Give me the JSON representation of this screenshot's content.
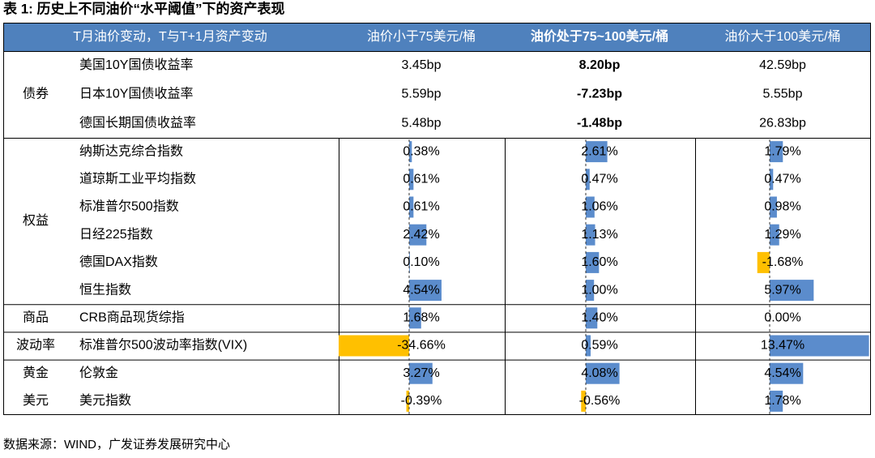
{
  "title": "表 1: 历史上不同油价“水平阈值”下的资产表现",
  "table": {
    "header": [
      "T月油价变动，T与T+1月资产变动",
      "油价小于75美元/桶",
      "油价处于75~100美元/桶",
      "油价大于100美元/桶"
    ],
    "groups": [
      {
        "label": "债券",
        "rows": [
          {
            "name": "美国10Y国债收益率",
            "cells": [
              "3.45bp",
              "8.20bp",
              "42.59bp"
            ]
          },
          {
            "name": "日本10Y国债收益率",
            "cells": [
              "5.59bp",
              "-7.23bp",
              "5.55bp"
            ]
          },
          {
            "name": "德国长期国债收益率",
            "cells": [
              "5.48bp",
              "-1.48bp",
              "26.83bp"
            ]
          }
        ]
      },
      {
        "label": "权益",
        "rows": [
          {
            "name": "纳斯达克综合指数",
            "cells": [
              {
                "value": 0.38,
                "label": "0.38%"
              },
              {
                "value": 2.61,
                "label": "2.61%"
              },
              {
                "value": 1.79,
                "label": "1.79%"
              }
            ]
          },
          {
            "name": "道琼斯工业平均指数",
            "cells": [
              {
                "value": 0.61,
                "label": "0.61%"
              },
              {
                "value": 0.47,
                "label": "0.47%"
              },
              {
                "value": 0.47,
                "label": "0.47%"
              }
            ]
          },
          {
            "name": "标准普尔500指数",
            "cells": [
              {
                "value": 0.61,
                "label": "0.61%"
              },
              {
                "value": 1.06,
                "label": "1.06%"
              },
              {
                "value": 0.98,
                "label": "0.98%"
              }
            ]
          },
          {
            "name": "日经225指数",
            "cells": [
              {
                "value": 2.42,
                "label": "2.42%"
              },
              {
                "value": 1.13,
                "label": "1.13%"
              },
              {
                "value": 1.29,
                "label": "1.29%"
              }
            ]
          },
          {
            "name": "德国DAX指数",
            "cells": [
              {
                "value": 0.1,
                "label": "0.10%"
              },
              {
                "value": 1.6,
                "label": "1.60%"
              },
              {
                "value": -1.68,
                "label": "-1.68%"
              }
            ]
          },
          {
            "name": "恒生指数",
            "cells": [
              {
                "value": 4.54,
                "label": "4.54%"
              },
              {
                "value": 1.0,
                "label": "1.00%"
              },
              {
                "value": 5.97,
                "label": "5.97%"
              }
            ]
          }
        ]
      },
      {
        "label": "商品",
        "rows": [
          {
            "name": "CRB商品现货综指",
            "cells": [
              {
                "value": 1.68,
                "label": "1.68%"
              },
              {
                "value": 1.4,
                "label": "1.40%"
              },
              {
                "value": 0.0,
                "label": "0.00%"
              }
            ]
          }
        ]
      },
      {
        "label": "波动率",
        "rows": [
          {
            "name": "标准普尔500波动率指数(VIX)",
            "cells": [
              {
                "value": -34.66,
                "label": "-34.66%"
              },
              {
                "value": 0.59,
                "label": "0.59%"
              },
              {
                "value": 13.47,
                "label": "13.47%"
              }
            ]
          }
        ]
      },
      {
        "label": "黄金",
        "rows": [
          {
            "name": "伦敦金",
            "cells": [
              {
                "value": 3.27,
                "label": "3.27%"
              },
              {
                "value": 4.08,
                "label": "4.08%"
              },
              {
                "value": 4.54,
                "label": "4.54%"
              }
            ]
          }
        ]
      },
      {
        "label": "美元",
        "rows": [
          {
            "name": "美元指数",
            "cells": [
              {
                "value": -0.39,
                "label": "-0.39%"
              },
              {
                "value": -0.56,
                "label": "-0.56%"
              },
              {
                "value": 1.78,
                "label": "1.78%"
              }
            ]
          }
        ]
      }
    ]
  },
  "source": "数据来源：WIND，广发证券发展研究中心"
}
